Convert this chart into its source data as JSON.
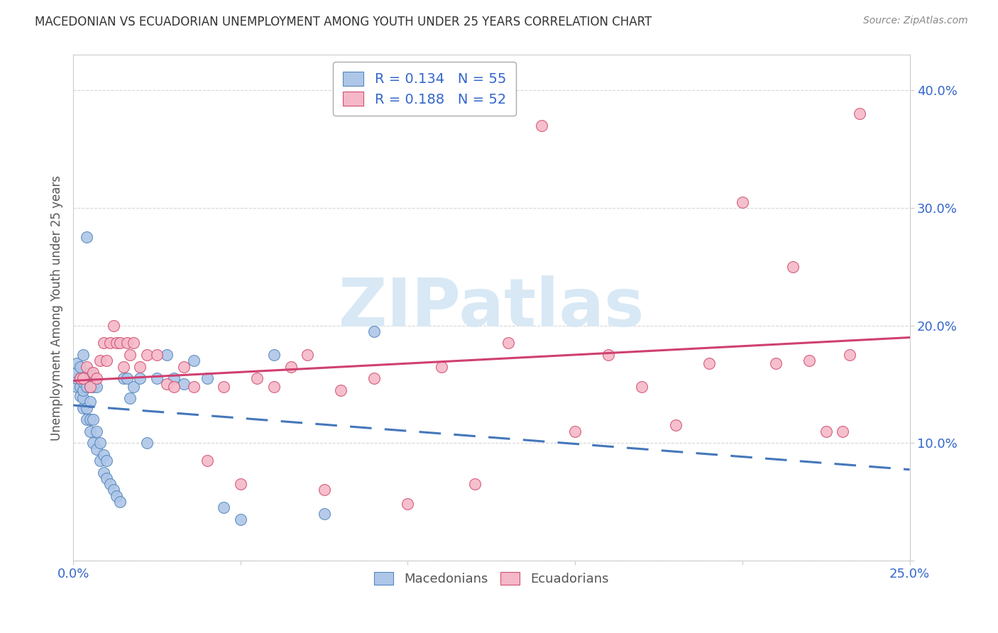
{
  "title": "MACEDONIAN VS ECUADORIAN UNEMPLOYMENT AMONG YOUTH UNDER 25 YEARS CORRELATION CHART",
  "source": "Source: ZipAtlas.com",
  "ylabel": "Unemployment Among Youth under 25 years",
  "xlim": [
    0.0,
    0.25
  ],
  "ylim": [
    0.0,
    0.43
  ],
  "xticks": [
    0.0,
    0.05,
    0.1,
    0.15,
    0.2,
    0.25
  ],
  "yticks": [
    0.0,
    0.1,
    0.2,
    0.3,
    0.4
  ],
  "macedonian_color": "#aec6e8",
  "macedonian_edge": "#5588bb",
  "ecuadorian_color": "#f5b8c8",
  "ecuadorian_edge": "#d05070",
  "trend_mac_color": "#4477bb",
  "trend_ecu_color": "#d04070",
  "R_mac": 0.134,
  "N_mac": 55,
  "R_ecu": 0.188,
  "N_ecu": 52,
  "background_color": "#ffffff",
  "grid_color": "#cccccc",
  "title_color": "#333333",
  "axis_label_color": "#3366cc",
  "watermark_text": "ZIPatlas",
  "watermark_color": "#d8e8f5",
  "macedonians_x": [
    0.001,
    0.001,
    0.001,
    0.001,
    0.002,
    0.002,
    0.002,
    0.002,
    0.003,
    0.003,
    0.003,
    0.003,
    0.003,
    0.004,
    0.004,
    0.004,
    0.004,
    0.005,
    0.005,
    0.005,
    0.005,
    0.005,
    0.006,
    0.006,
    0.006,
    0.007,
    0.007,
    0.007,
    0.008,
    0.008,
    0.009,
    0.009,
    0.01,
    0.01,
    0.011,
    0.012,
    0.013,
    0.014,
    0.015,
    0.016,
    0.017,
    0.018,
    0.02,
    0.022,
    0.025,
    0.028,
    0.03,
    0.033,
    0.036,
    0.04,
    0.045,
    0.05,
    0.06,
    0.075,
    0.09
  ],
  "macedonians_y": [
    0.148,
    0.155,
    0.16,
    0.168,
    0.14,
    0.148,
    0.155,
    0.165,
    0.13,
    0.138,
    0.145,
    0.152,
    0.175,
    0.12,
    0.13,
    0.148,
    0.275,
    0.11,
    0.12,
    0.135,
    0.148,
    0.16,
    0.1,
    0.12,
    0.148,
    0.095,
    0.11,
    0.148,
    0.085,
    0.1,
    0.075,
    0.09,
    0.07,
    0.085,
    0.065,
    0.06,
    0.055,
    0.05,
    0.155,
    0.155,
    0.138,
    0.148,
    0.155,
    0.1,
    0.155,
    0.175,
    0.155,
    0.15,
    0.17,
    0.155,
    0.045,
    0.035,
    0.175,
    0.04,
    0.195
  ],
  "ecuadorians_x": [
    0.002,
    0.003,
    0.004,
    0.005,
    0.006,
    0.007,
    0.008,
    0.009,
    0.01,
    0.011,
    0.012,
    0.013,
    0.014,
    0.015,
    0.016,
    0.017,
    0.018,
    0.02,
    0.022,
    0.025,
    0.028,
    0.03,
    0.033,
    0.036,
    0.04,
    0.045,
    0.05,
    0.055,
    0.06,
    0.065,
    0.07,
    0.075,
    0.08,
    0.09,
    0.1,
    0.11,
    0.12,
    0.13,
    0.14,
    0.15,
    0.16,
    0.17,
    0.18,
    0.19,
    0.2,
    0.21,
    0.215,
    0.22,
    0.225,
    0.23,
    0.232,
    0.235
  ],
  "ecuadorians_y": [
    0.155,
    0.155,
    0.165,
    0.148,
    0.16,
    0.155,
    0.17,
    0.185,
    0.17,
    0.185,
    0.2,
    0.185,
    0.185,
    0.165,
    0.185,
    0.175,
    0.185,
    0.165,
    0.175,
    0.175,
    0.15,
    0.148,
    0.165,
    0.148,
    0.085,
    0.148,
    0.065,
    0.155,
    0.148,
    0.165,
    0.175,
    0.06,
    0.145,
    0.155,
    0.048,
    0.165,
    0.065,
    0.185,
    0.37,
    0.11,
    0.175,
    0.148,
    0.115,
    0.168,
    0.305,
    0.168,
    0.25,
    0.17,
    0.11,
    0.11,
    0.175,
    0.38
  ]
}
